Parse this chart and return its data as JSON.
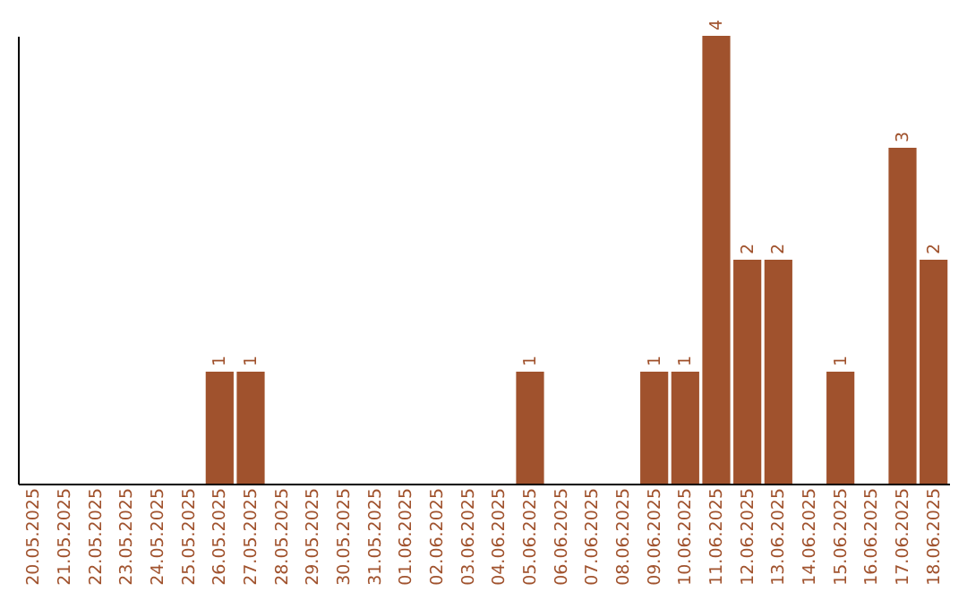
{
  "chart_data": {
    "type": "bar",
    "categories": [
      "20.05.2025",
      "21.05.2025",
      "22.05.2025",
      "23.05.2025",
      "24.05.2025",
      "25.05.2025",
      "26.05.2025",
      "27.05.2025",
      "28.05.2025",
      "29.05.2025",
      "30.05.2025",
      "31.05.2025",
      "01.06.2025",
      "02.06.2025",
      "03.06.2025",
      "04.06.2025",
      "05.06.2025",
      "06.06.2025",
      "07.06.2025",
      "08.06.2025",
      "09.06.2025",
      "10.06.2025",
      "11.06.2025",
      "12.06.2025",
      "13.06.2025",
      "14.06.2025",
      "15.06.2025",
      "16.06.2025",
      "17.06.2025",
      "18.06.2025"
    ],
    "values": [
      0,
      0,
      0,
      0,
      0,
      0,
      1,
      1,
      0,
      0,
      0,
      0,
      0,
      0,
      0,
      0,
      1,
      0,
      0,
      0,
      1,
      1,
      4,
      2,
      2,
      0,
      1,
      0,
      3,
      2
    ],
    "value_labels": [
      null,
      null,
      null,
      null,
      null,
      null,
      "1",
      "1",
      null,
      null,
      null,
      null,
      null,
      null,
      null,
      null,
      "1",
      null,
      null,
      null,
      "1",
      "1",
      "4",
      "2",
      "2",
      null,
      "1",
      null,
      "3",
      "2"
    ],
    "color": "#a0522d",
    "tick_labels": "x",
    "grid": false
  }
}
